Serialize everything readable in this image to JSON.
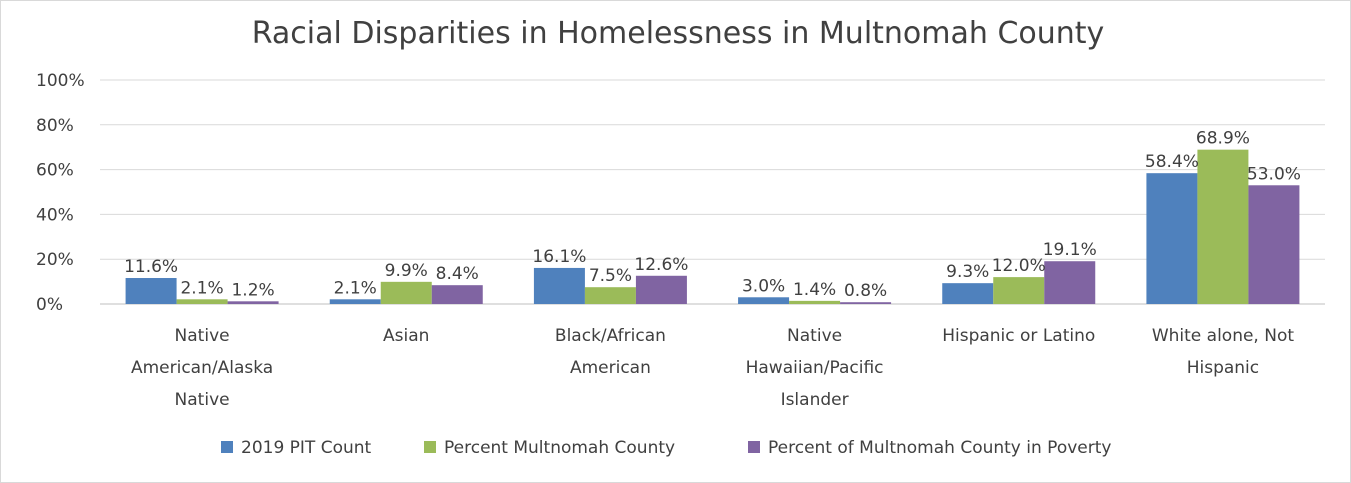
{
  "chart_data": {
    "type": "bar",
    "title": "Racial Disparities in Homelessness in Multnomah County",
    "categories": [
      "Native American/Alaska Native",
      "Asian",
      "Black/African American",
      "Native Hawaiian/Pacific Islander",
      "Hispanic or Latino",
      "White alone, Not Hispanic"
    ],
    "category_lines": [
      [
        "Native",
        "American/Alaska",
        "Native"
      ],
      [
        "Asian"
      ],
      [
        "Black/African",
        "American"
      ],
      [
        "Native",
        "Hawaiian/Pacific",
        "Islander"
      ],
      [
        "Hispanic or Latino"
      ],
      [
        "White alone, Not",
        "Hispanic"
      ]
    ],
    "series": [
      {
        "name": "2019 PIT Count",
        "color": "#4f81bd",
        "values": [
          11.6,
          2.1,
          16.1,
          3.0,
          9.3,
          58.4
        ],
        "labels": [
          "11.6%",
          "2.1%",
          "16.1%",
          "3.0%",
          "9.3%",
          "58.4%"
        ]
      },
      {
        "name": "Percent Multnomah County",
        "color": "#9bbb59",
        "values": [
          2.1,
          9.9,
          7.5,
          1.4,
          12.0,
          68.9
        ],
        "labels": [
          "2.1%",
          "9.9%",
          "7.5%",
          "1.4%",
          "12.0%",
          "68.9%"
        ]
      },
      {
        "name": "Percent of Multnomah County in Poverty",
        "color": "#8064a2",
        "values": [
          1.2,
          8.4,
          12.6,
          0.8,
          19.1,
          53.0
        ],
        "labels": [
          "1.2%",
          "8.4%",
          "12.6%",
          "0.8%",
          "19.1%",
          "53.0%"
        ]
      }
    ],
    "ylim": [
      0,
      100
    ],
    "yticks": [
      0,
      20,
      40,
      60,
      80,
      100
    ],
    "ytick_labels": [
      "0%",
      "20%",
      "40%",
      "60%",
      "80%",
      "100%"
    ],
    "grid": true,
    "legend_position": "bottom"
  }
}
